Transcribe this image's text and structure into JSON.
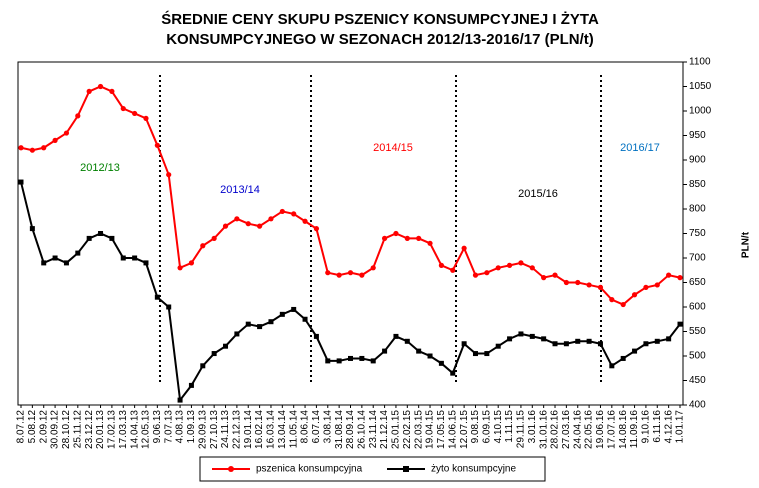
{
  "chart_data": {
    "type": "line",
    "title": "ŚREDNIE CENY SKUPU PSZENICY KONSUMPCYJNEJ I ŻYTA KONSUMPCYJNEGO W SEZONACH 2012/13-2016/17 (PLN/t)",
    "y_label": "PLN/t",
    "categories": [
      "8.07.12",
      "5.08.12",
      "2.09.12",
      "30.09.12",
      "28.10.12",
      "25.11.12",
      "23.12.12",
      "20.01.13",
      "17.02.13",
      "17.03.13",
      "14.04.13",
      "12.05.13",
      "9.06.13",
      "7.07.13",
      "4.08.13",
      "1.09.13",
      "29.09.13",
      "27.10.13",
      "24.11.13",
      "22.12.13",
      "19.01.14",
      "16.02.14",
      "16.03.14",
      "13.04.14",
      "11.05.14",
      "8.06.14",
      "6.07.14",
      "3.08.14",
      "31.08.14",
      "28.09.14",
      "26.10.14",
      "23.11.14",
      "21.12.14",
      "25.01.15",
      "22.02.15",
      "22.03.15",
      "19.04.15",
      "17.05.15",
      "14.06.15",
      "12.07.15",
      "9.08.15",
      "6.09.15",
      "4.10.15",
      "1.11.15",
      "29.11.15",
      "3.01.16",
      "31.01.16",
      "28.02.16",
      "27.03.16",
      "24.04.16",
      "22.05.16",
      "19.06.16",
      "17.07.16",
      "14.08.16",
      "11.09.16",
      "9.10.16",
      "6.11.16",
      "4.12.16",
      "1.01.17"
    ],
    "series": [
      {
        "name": "pszenica konsumpcyjna",
        "color": "#ff0000",
        "marker": "circle",
        "values": [
          925,
          920,
          925,
          940,
          955,
          990,
          1040,
          1050,
          1040,
          1005,
          995,
          985,
          930,
          870,
          680,
          690,
          725,
          740,
          765,
          780,
          770,
          765,
          780,
          795,
          790,
          775,
          760,
          670,
          665,
          670,
          665,
          680,
          740,
          750,
          740,
          740,
          730,
          685,
          675,
          720,
          665,
          670,
          680,
          685,
          690,
          680,
          660,
          665,
          650,
          650,
          645,
          640,
          615,
          605,
          625,
          640,
          645,
          665,
          660
        ]
      },
      {
        "name": "żyto konsumpcyjne",
        "color": "#000000",
        "marker": "square",
        "values": [
          855,
          760,
          690,
          700,
          690,
          710,
          740,
          750,
          740,
          700,
          700,
          690,
          620,
          600,
          410,
          440,
          480,
          505,
          520,
          545,
          565,
          560,
          570,
          585,
          595,
          575,
          540,
          490,
          490,
          495,
          495,
          490,
          510,
          540,
          530,
          510,
          500,
          485,
          465,
          525,
          505,
          505,
          520,
          535,
          545,
          540,
          535,
          525,
          525,
          530,
          530,
          525,
          480,
          495,
          510,
          525,
          530,
          535,
          565
        ]
      }
    ],
    "ylim": [
      400,
      1100
    ],
    "yticks": [
      400,
      450,
      500,
      550,
      600,
      650,
      700,
      750,
      800,
      850,
      900,
      950,
      1000,
      1050,
      1100
    ],
    "grid": false,
    "legend": "bottom",
    "annotations": [
      {
        "text": "2012/13",
        "color": "#008000"
      },
      {
        "text": "2013/14",
        "color": "#0000cc"
      },
      {
        "text": "2014/15",
        "color": "#ff0000"
      },
      {
        "text": "2015/16",
        "color": "#000000"
      },
      {
        "text": "2016/17",
        "color": "#0070c0"
      }
    ]
  }
}
